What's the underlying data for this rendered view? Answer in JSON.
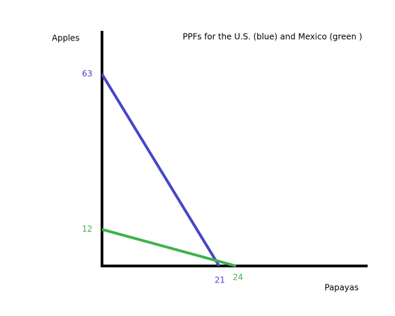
{
  "chart_data": {
    "type": "line",
    "title": "PPFs for the U.S. (blue) and Mexico (green )",
    "y_label": "Apples",
    "x_label": "Papayas",
    "xlim": [
      0,
      47
    ],
    "ylim": [
      0,
      77
    ],
    "series": [
      {
        "name": "U.S.",
        "color": "#4646c8",
        "x": [
          0,
          21
        ],
        "values": [
          63,
          0
        ]
      },
      {
        "name": "Mexico",
        "color": "#3cb44b",
        "x": [
          0,
          24
        ],
        "values": [
          12,
          0
        ]
      }
    ]
  }
}
